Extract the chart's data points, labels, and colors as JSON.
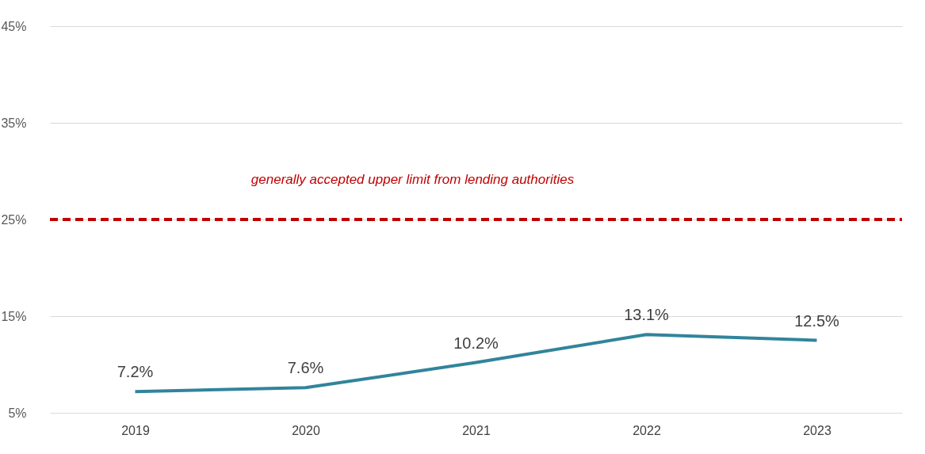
{
  "chart_data": {
    "type": "line",
    "categories": [
      "2019",
      "2020",
      "2021",
      "2022",
      "2023"
    ],
    "series": [
      {
        "color": "#31849b",
        "values": [
          7.2,
          7.6,
          10.2,
          13.1,
          12.5
        ]
      }
    ],
    "ylim": [
      5,
      45
    ],
    "yticks": [
      {
        "value": 5,
        "label": "5%"
      },
      {
        "value": 15,
        "label": "15%"
      },
      {
        "value": 25,
        "label": "25%"
      },
      {
        "value": 35,
        "label": "35%"
      },
      {
        "value": 45,
        "label": "45%"
      }
    ],
    "grid": "y",
    "marker": "none",
    "value_labels": [
      "7.2%",
      "7.6%",
      "10.2%",
      "13.1%",
      "12.5%"
    ],
    "ref_lines": [
      {
        "axis": "y",
        "value": 25,
        "label": "generally accepted upper limit from lending authorities",
        "color": "#c00000",
        "line_style": "dashed"
      }
    ]
  }
}
